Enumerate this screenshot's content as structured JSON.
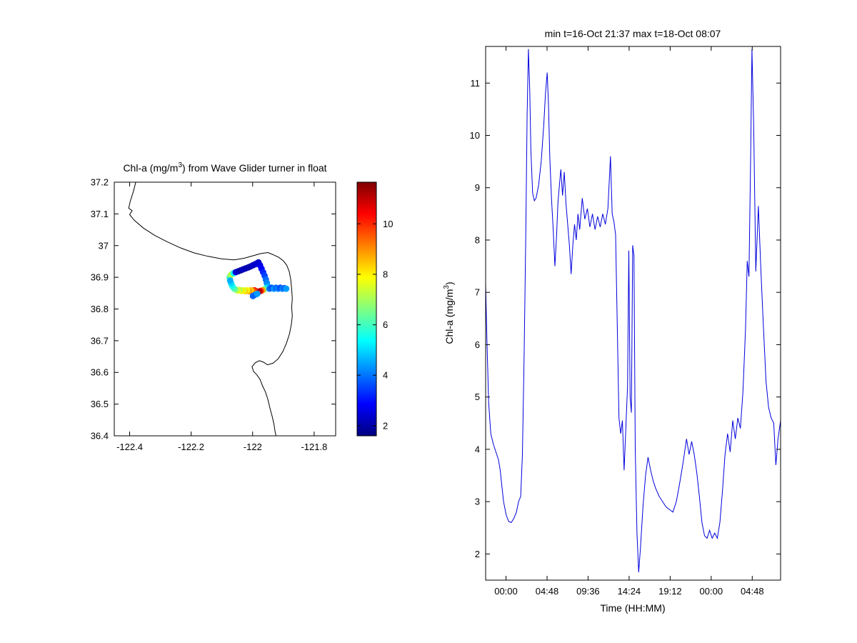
{
  "figure": {
    "background": "#ffffff",
    "axis_color": "#000000"
  },
  "chart_data": [
    {
      "type": "scatter",
      "name": "glider-track-map",
      "title": "Chl-a (mg/m³) from Wave Glider turner in float",
      "title_parts": {
        "pre": "Chl-a (mg/m",
        "sup": "3",
        "post": ") from Wave Glider turner in float"
      },
      "xlim": [
        -122.45,
        -121.73
      ],
      "ylim": [
        36.4,
        37.2
      ],
      "xticks": [
        -122.4,
        -122.2,
        -122.0,
        -121.8
      ],
      "xtick_labels": [
        "-122.4",
        "-122.2",
        "-122",
        "-121.8"
      ],
      "yticks": [
        37.2,
        37.1,
        37.0,
        36.9,
        36.8,
        36.7,
        36.6,
        36.5,
        36.4
      ],
      "ytick_labels": [
        "37.2",
        "37.1",
        "37",
        "36.9",
        "36.8",
        "36.7",
        "36.6",
        "36.5",
        "36.4"
      ],
      "colormap": "jet",
      "caxis": [
        1.6,
        11.65
      ],
      "colorbar_ticks": [
        2,
        4,
        6,
        8,
        10
      ],
      "colorbar_tick_labels": [
        "2",
        "4",
        "6",
        "8",
        "10"
      ],
      "coastline": [
        [
          -122.38,
          37.2
        ],
        [
          -122.388,
          37.17
        ],
        [
          -122.398,
          37.14
        ],
        [
          -122.403,
          37.118
        ],
        [
          -122.392,
          37.11
        ],
        [
          -122.4,
          37.098
        ],
        [
          -122.385,
          37.08
        ],
        [
          -122.355,
          37.055
        ],
        [
          -122.318,
          37.032
        ],
        [
          -122.278,
          37.012
        ],
        [
          -122.235,
          36.993
        ],
        [
          -122.19,
          36.977
        ],
        [
          -122.145,
          36.966
        ],
        [
          -122.1,
          36.958
        ],
        [
          -122.06,
          36.955
        ],
        [
          -122.028,
          36.96
        ],
        [
          -121.998,
          36.968
        ],
        [
          -121.972,
          36.975
        ],
        [
          -121.95,
          36.978
        ],
        [
          -121.933,
          36.971
        ],
        [
          -121.915,
          36.963
        ],
        [
          -121.9,
          36.952
        ],
        [
          -121.889,
          36.938
        ],
        [
          -121.881,
          36.918
        ],
        [
          -121.876,
          36.893
        ],
        [
          -121.873,
          36.863
        ],
        [
          -121.871,
          36.833
        ],
        [
          -121.873,
          36.806
        ],
        [
          -121.871,
          36.778
        ],
        [
          -121.874,
          36.752
        ],
        [
          -121.88,
          36.722
        ],
        [
          -121.89,
          36.692
        ],
        [
          -121.902,
          36.665
        ],
        [
          -121.917,
          36.643
        ],
        [
          -121.934,
          36.629
        ],
        [
          -121.952,
          36.624
        ],
        [
          -121.964,
          36.632
        ],
        [
          -121.978,
          36.637
        ],
        [
          -121.992,
          36.63
        ],
        [
          -122.002,
          36.618
        ],
        [
          -121.997,
          36.603
        ],
        [
          -121.986,
          36.592
        ],
        [
          -121.976,
          36.578
        ],
        [
          -121.968,
          36.558
        ],
        [
          -121.958,
          36.538
        ],
        [
          -121.95,
          36.513
        ],
        [
          -121.944,
          36.488
        ],
        [
          -121.937,
          36.463
        ],
        [
          -121.931,
          36.438
        ],
        [
          -121.927,
          36.413
        ],
        [
          -121.924,
          36.4
        ]
      ],
      "points": [
        [
          -122.075,
          36.9,
          6
        ],
        [
          -122.072,
          36.906,
          6.8
        ],
        [
          -122.068,
          36.91,
          7.2
        ],
        [
          -122.062,
          36.913,
          5.5
        ],
        [
          -122.055,
          36.916,
          2.5
        ],
        [
          -122.047,
          36.919,
          2.2
        ],
        [
          -122.039,
          36.922,
          2
        ],
        [
          -122.031,
          36.925,
          2.3
        ],
        [
          -122.023,
          36.928,
          2.1
        ],
        [
          -122.015,
          36.931,
          2.2
        ],
        [
          -122.007,
          36.934,
          2
        ],
        [
          -121.999,
          36.938,
          2.4
        ],
        [
          -121.992,
          36.941,
          2.2
        ],
        [
          -121.986,
          36.944,
          2.5
        ],
        [
          -121.981,
          36.947,
          2.3
        ],
        [
          -121.976,
          36.938,
          2.6
        ],
        [
          -121.971,
          36.927,
          2.9
        ],
        [
          -121.966,
          36.916,
          3.2
        ],
        [
          -121.961,
          36.905,
          3.5
        ],
        [
          -121.957,
          36.893,
          3.9
        ],
        [
          -121.954,
          36.882,
          4.2
        ],
        [
          -121.951,
          36.872,
          4.5
        ],
        [
          -121.956,
          36.866,
          5.2
        ],
        [
          -121.962,
          36.862,
          6.5
        ],
        [
          -121.968,
          36.859,
          8.8
        ],
        [
          -121.974,
          36.857,
          10.2
        ],
        [
          -121.979,
          36.855,
          11.2
        ],
        [
          -121.984,
          36.853,
          10.8
        ],
        [
          -121.989,
          36.856,
          11.4
        ],
        [
          -121.994,
          36.859,
          10
        ],
        [
          -122.0,
          36.856,
          9.2
        ],
        [
          -122.006,
          36.859,
          8.4
        ],
        [
          -122.012,
          36.856,
          8.9
        ],
        [
          -122.018,
          36.859,
          7.8
        ],
        [
          -122.024,
          36.856,
          8.3
        ],
        [
          -122.03,
          36.859,
          7.5
        ],
        [
          -122.036,
          36.857,
          8
        ],
        [
          -122.042,
          36.86,
          7.2
        ],
        [
          -122.048,
          36.858,
          7.6
        ],
        [
          -122.054,
          36.861,
          6.9
        ],
        [
          -122.06,
          36.864,
          6.2
        ],
        [
          -122.066,
          36.872,
          5.6
        ],
        [
          -122.07,
          36.881,
          5
        ],
        [
          -122.073,
          36.89,
          4.6
        ],
        [
          -121.945,
          36.864,
          4
        ],
        [
          -121.938,
          36.867,
          3.7
        ],
        [
          -121.931,
          36.864,
          4.3
        ],
        [
          -121.924,
          36.867,
          3.9
        ],
        [
          -121.917,
          36.864,
          4.1
        ],
        [
          -121.91,
          36.867,
          3.6
        ],
        [
          -121.903,
          36.864,
          4.2
        ],
        [
          -121.897,
          36.866,
          3.8
        ],
        [
          -121.891,
          36.864,
          4.4
        ],
        [
          -121.992,
          36.845,
          4.1
        ],
        [
          -121.999,
          36.841,
          3.8
        ],
        [
          -121.985,
          36.848,
          4.4
        ]
      ]
    },
    {
      "type": "line",
      "name": "chla-timeseries",
      "title": "min t=16-Oct 21:37 max t=18-Oct 08:07",
      "xlabel": "Time (HH:MM)",
      "ylabel": "Chl-a (mg/m³)",
      "ylabel_parts": {
        "pre": "Chl-a (mg/m",
        "sup": "3",
        "post": ")"
      },
      "line_color": "#0000dd",
      "xlim_hours": [
        0,
        34.5
      ],
      "ylim": [
        1.5,
        11.7
      ],
      "xticks_hours": [
        2.383,
        7.183,
        11.983,
        16.783,
        21.583,
        26.383,
        31.183
      ],
      "xtick_labels": [
        "00:00",
        "04:48",
        "09:36",
        "14:24",
        "19:12",
        "00:00",
        "04:48"
      ],
      "yticks": [
        2,
        3,
        4,
        5,
        6,
        7,
        8,
        9,
        10,
        11
      ],
      "ytick_labels": [
        "2",
        "3",
        "4",
        "5",
        "6",
        "7",
        "8",
        "9",
        "10",
        "11"
      ],
      "points": [
        [
          0,
          7.15
        ],
        [
          0.15,
          6.1
        ],
        [
          0.35,
          4.9
        ],
        [
          0.6,
          4.3
        ],
        [
          0.9,
          4.1
        ],
        [
          1.2,
          3.95
        ],
        [
          1.5,
          3.8
        ],
        [
          1.7,
          3.6
        ],
        [
          1.9,
          3.3
        ],
        [
          2.1,
          3
        ],
        [
          2.4,
          2.75
        ],
        [
          2.7,
          2.62
        ],
        [
          3,
          2.6
        ],
        [
          3.3,
          2.68
        ],
        [
          3.6,
          2.8
        ],
        [
          3.85,
          3
        ],
        [
          4.1,
          3.1
        ],
        [
          4.3,
          3.9
        ],
        [
          4.5,
          5.8
        ],
        [
          4.7,
          8.2
        ],
        [
          4.85,
          10.4
        ],
        [
          5,
          11.65
        ],
        [
          5.15,
          10.9
        ],
        [
          5.3,
          9.7
        ],
        [
          5.5,
          8.9
        ],
        [
          5.7,
          8.75
        ],
        [
          5.9,
          8.8
        ],
        [
          6.2,
          9.05
        ],
        [
          6.5,
          9.5
        ],
        [
          6.8,
          10.2
        ],
        [
          7,
          10.8
        ],
        [
          7.2,
          11.2
        ],
        [
          7.35,
          10.6
        ],
        [
          7.5,
          9.6
        ],
        [
          7.7,
          8.8
        ],
        [
          7.9,
          8.2
        ],
        [
          8.1,
          7.5
        ],
        [
          8.3,
          8.1
        ],
        [
          8.45,
          8.7
        ],
        [
          8.6,
          9
        ],
        [
          8.8,
          9.35
        ],
        [
          9,
          8.85
        ],
        [
          9.2,
          9.3
        ],
        [
          9.4,
          8.7
        ],
        [
          9.6,
          8.3
        ],
        [
          9.8,
          7.9
        ],
        [
          10,
          7.35
        ],
        [
          10.2,
          7.9
        ],
        [
          10.4,
          8.3
        ],
        [
          10.6,
          8
        ],
        [
          10.8,
          8.5
        ],
        [
          11,
          8.2
        ],
        [
          11.3,
          8.8
        ],
        [
          11.6,
          8.4
        ],
        [
          11.9,
          8.6
        ],
        [
          12.2,
          8.25
        ],
        [
          12.5,
          8.5
        ],
        [
          12.8,
          8.2
        ],
        [
          13.1,
          8.45
        ],
        [
          13.4,
          8.25
        ],
        [
          13.7,
          8.5
        ],
        [
          14,
          8.3
        ],
        [
          14.3,
          8.6
        ],
        [
          14.6,
          9.6
        ],
        [
          14.8,
          8.5
        ],
        [
          15,
          8.35
        ],
        [
          15.2,
          8.1
        ],
        [
          15.4,
          6.3
        ],
        [
          15.6,
          4.6
        ],
        [
          15.8,
          4.3
        ],
        [
          16,
          4.55
        ],
        [
          16.2,
          3.6
        ],
        [
          16.4,
          4.4
        ],
        [
          16.6,
          5.2
        ],
        [
          16.75,
          7.8
        ],
        [
          16.9,
          5
        ],
        [
          17.05,
          4.7
        ],
        [
          17.2,
          7.9
        ],
        [
          17.35,
          7.7
        ],
        [
          17.5,
          4
        ],
        [
          17.7,
          2.4
        ],
        [
          17.9,
          1.65
        ],
        [
          18.1,
          2.1
        ],
        [
          18.4,
          2.9
        ],
        [
          18.7,
          3.5
        ],
        [
          19,
          3.85
        ],
        [
          19.3,
          3.6
        ],
        [
          19.6,
          3.4
        ],
        [
          19.9,
          3.25
        ],
        [
          20.3,
          3.1
        ],
        [
          20.7,
          3
        ],
        [
          21.1,
          2.9
        ],
        [
          21.5,
          2.85
        ],
        [
          21.9,
          2.8
        ],
        [
          22.3,
          3
        ],
        [
          22.7,
          3.35
        ],
        [
          23.1,
          3.75
        ],
        [
          23.5,
          4.2
        ],
        [
          23.8,
          3.9
        ],
        [
          24.1,
          4.15
        ],
        [
          24.4,
          3.9
        ],
        [
          24.7,
          3.55
        ],
        [
          25,
          3.1
        ],
        [
          25.3,
          2.6
        ],
        [
          25.6,
          2.35
        ],
        [
          25.9,
          2.3
        ],
        [
          26.2,
          2.45
        ],
        [
          26.5,
          2.3
        ],
        [
          26.8,
          2.4
        ],
        [
          27.1,
          2.3
        ],
        [
          27.4,
          2.6
        ],
        [
          27.7,
          3.2
        ],
        [
          28,
          3.9
        ],
        [
          28.3,
          4.3
        ],
        [
          28.6,
          3.95
        ],
        [
          28.9,
          4.55
        ],
        [
          29.2,
          4.2
        ],
        [
          29.5,
          4.6
        ],
        [
          29.8,
          4.4
        ],
        [
          30.1,
          5.1
        ],
        [
          30.4,
          6.3
        ],
        [
          30.6,
          7.6
        ],
        [
          30.8,
          7.3
        ],
        [
          31,
          9.6
        ],
        [
          31.15,
          11.65
        ],
        [
          31.35,
          10.2
        ],
        [
          31.6,
          7.4
        ],
        [
          31.9,
          8.65
        ],
        [
          32.2,
          7.4
        ],
        [
          32.5,
          6.3
        ],
        [
          32.8,
          5.3
        ],
        [
          33.1,
          4.8
        ],
        [
          33.4,
          4.6
        ],
        [
          33.7,
          4.5
        ],
        [
          33.95,
          3.7
        ],
        [
          34.2,
          4.2
        ],
        [
          34.5,
          4.55
        ]
      ]
    }
  ]
}
